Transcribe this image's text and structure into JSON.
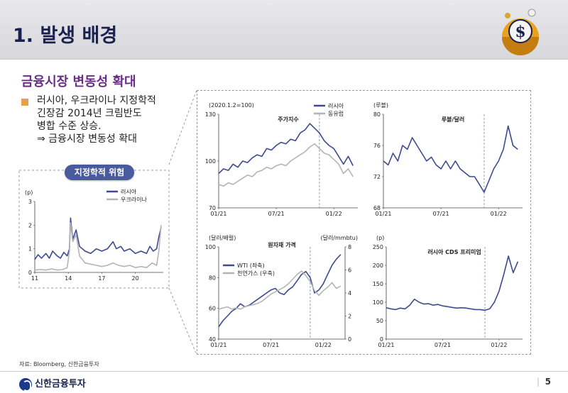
{
  "header": {
    "title": "1. 발생 배경"
  },
  "section": {
    "title": "금융시장 변동성 확대"
  },
  "bullet": {
    "lines": [
      "러시아, 우크라이나 지정학적",
      "긴장감 2014년 크림반도",
      "병합 수준 상승.",
      "⇒ 금융시장 변동성 확대"
    ]
  },
  "footer": {
    "source": "자료: Bloomberg, 신한금융투자",
    "brand": "신한금융투자",
    "page": "5"
  },
  "colors": {
    "navy": "#3d4a8f",
    "gray": "#b4b4b4",
    "purple": "#6a2c87"
  },
  "chart_data": [
    {
      "id": "geo_risk",
      "type": "line",
      "title": "지정학적 위험",
      "ylabel": "(p)",
      "ylim": [
        0,
        3
      ],
      "yticks": [
        0,
        1,
        2,
        3
      ],
      "xlim": [
        2011,
        2022.5
      ],
      "xticks": [
        2011,
        2014,
        2017,
        2020
      ],
      "xticklabels": [
        "11",
        "14",
        "17",
        "20"
      ],
      "legend": "top-right",
      "series": [
        {
          "name": "러시아",
          "color": "#3d4a8f",
          "x": [
            2011,
            2011.3,
            2011.6,
            2012,
            2012.3,
            2012.6,
            2013,
            2013.3,
            2013.6,
            2013.9,
            2014.1,
            2014.2,
            2014.4,
            2014.7,
            2015,
            2015.5,
            2016,
            2016.5,
            2017,
            2017.5,
            2018,
            2018.3,
            2018.7,
            2019,
            2019.5,
            2020,
            2020.5,
            2021,
            2021.3,
            2021.6,
            2021.9,
            2022.1,
            2022.3
          ],
          "y": [
            0.55,
            0.75,
            0.6,
            0.8,
            0.6,
            0.9,
            0.7,
            0.6,
            0.85,
            0.7,
            1.0,
            2.3,
            1.4,
            1.8,
            1.1,
            0.9,
            0.8,
            1.0,
            0.9,
            1.0,
            1.3,
            1.0,
            1.1,
            0.9,
            1.0,
            0.8,
            0.9,
            0.8,
            1.1,
            0.9,
            1.0,
            1.5,
            1.9
          ]
        },
        {
          "name": "우크라이나",
          "color": "#b4b4b4",
          "x": [
            2011,
            2011.5,
            2012,
            2012.5,
            2013,
            2013.5,
            2013.9,
            2014.1,
            2014.2,
            2014.4,
            2014.7,
            2015,
            2015.5,
            2016,
            2016.5,
            2017,
            2017.5,
            2018,
            2018.5,
            2019,
            2019.5,
            2020,
            2020.5,
            2021,
            2021.5,
            2021.9,
            2022.1,
            2022.3
          ],
          "y": [
            0.1,
            0.12,
            0.1,
            0.15,
            0.1,
            0.12,
            0.2,
            0.9,
            2.1,
            1.3,
            1.6,
            0.7,
            0.4,
            0.35,
            0.3,
            0.25,
            0.3,
            0.4,
            0.3,
            0.25,
            0.3,
            0.2,
            0.25,
            0.2,
            0.4,
            0.3,
            0.9,
            2.0
          ]
        }
      ]
    },
    {
      "id": "stock_index",
      "type": "line",
      "title": "주가지수",
      "ylabel": "(2020.1.2=100)",
      "ylim": [
        70,
        130
      ],
      "yticks": [
        70,
        100,
        130
      ],
      "xlim": [
        0,
        14.5
      ],
      "xticks": [
        0,
        6,
        12
      ],
      "xticklabels": [
        "01/21",
        "07/21",
        "01/22"
      ],
      "vline": 10.5,
      "legend": "top-right",
      "series": [
        {
          "name": "러시아",
          "color": "#3d4a8f",
          "x": [
            0,
            0.5,
            1,
            1.5,
            2,
            2.5,
            3,
            3.5,
            4,
            4.5,
            5,
            5.5,
            6,
            6.5,
            7,
            7.5,
            8,
            8.5,
            9,
            9.5,
            10,
            10.5,
            11,
            11.5,
            12,
            12.5,
            13,
            13.5,
            14
          ],
          "y": [
            92,
            95,
            94,
            98,
            96,
            100,
            99,
            102,
            104,
            103,
            108,
            107,
            110,
            112,
            111,
            114,
            113,
            118,
            120,
            124,
            121,
            118,
            113,
            110,
            108,
            103,
            98,
            103,
            97
          ]
        },
        {
          "name": "동유럽",
          "color": "#b4b4b4",
          "x": [
            0,
            0.5,
            1,
            1.5,
            2,
            2.5,
            3,
            3.5,
            4,
            4.5,
            5,
            5.5,
            6,
            6.5,
            7,
            7.5,
            8,
            8.5,
            9,
            9.5,
            10,
            10.5,
            11,
            11.5,
            12,
            12.5,
            13,
            13.5,
            14
          ],
          "y": [
            85,
            84,
            86,
            85,
            87,
            89,
            91,
            90,
            93,
            94,
            96,
            95,
            97,
            98,
            97,
            100,
            102,
            104,
            106,
            109,
            111,
            108,
            105,
            104,
            101,
            98,
            92,
            95,
            90
          ]
        }
      ]
    },
    {
      "id": "rub_usd",
      "type": "line",
      "title": "루블/달러",
      "ylabel": "(루블)",
      "ylim": [
        68,
        80
      ],
      "yticks": [
        68,
        72,
        76,
        80
      ],
      "xlim": [
        0,
        14.5
      ],
      "xticks": [
        0,
        6,
        12
      ],
      "xticklabels": [
        "01/21",
        "07/21",
        "01/22"
      ],
      "vline": 10.5,
      "series": [
        {
          "name": "",
          "color": "#3d4a8f",
          "x": [
            0,
            0.5,
            1,
            1.5,
            2,
            2.5,
            3,
            3.5,
            4,
            4.5,
            5,
            5.5,
            6,
            6.5,
            7,
            7.5,
            8,
            8.5,
            9,
            9.5,
            10,
            10.5,
            11,
            11.5,
            12,
            12.5,
            13,
            13.5,
            14
          ],
          "y": [
            74,
            73.5,
            75,
            74,
            76,
            75.5,
            77,
            76,
            75,
            74,
            74.5,
            73.5,
            73,
            74,
            73,
            74,
            73,
            72.5,
            72,
            72,
            71,
            70,
            71.5,
            73,
            74,
            75.5,
            78.5,
            76,
            75.5
          ]
        }
      ]
    },
    {
      "id": "commodity",
      "type": "line",
      "title": "원자재 가격",
      "ylabel": "(달러/배럴)",
      "ylabel_right": "(달러/mmbtu)",
      "ylim": [
        40,
        100
      ],
      "yticks": [
        40,
        60,
        80,
        100
      ],
      "ylim_right": [
        0,
        8
      ],
      "yticks_right": [
        0,
        2,
        4,
        6,
        8
      ],
      "xlim": [
        0,
        14.5
      ],
      "xticks": [
        0,
        6,
        12
      ],
      "xticklabels": [
        "01/21",
        "07/21",
        "01/22"
      ],
      "vline": 10.5,
      "legend": "middle-left",
      "series": [
        {
          "name": "WTI (좌축)",
          "color": "#3d4a8f",
          "axis": "left",
          "x": [
            0,
            0.5,
            1,
            1.5,
            2,
            2.5,
            3,
            3.5,
            4,
            4.5,
            5,
            5.5,
            6,
            6.5,
            7,
            7.5,
            8,
            8.5,
            9,
            9.5,
            10,
            10.5,
            11,
            11.5,
            12,
            12.5,
            13,
            13.5,
            14
          ],
          "y": [
            48,
            52,
            55,
            58,
            60,
            63,
            61,
            62,
            64,
            66,
            68,
            70,
            72,
            73,
            70,
            69,
            72,
            74,
            78,
            82,
            84,
            80,
            70,
            72,
            76,
            82,
            88,
            92,
            95
          ]
        },
        {
          "name": "천연가스 (우축)",
          "color": "#b4b4b4",
          "axis": "right",
          "x": [
            0,
            0.5,
            1,
            1.5,
            2,
            2.5,
            3,
            3.5,
            4,
            4.5,
            5,
            5.5,
            6,
            6.5,
            7,
            7.5,
            8,
            8.5,
            9,
            9.5,
            10,
            10.5,
            11,
            11.5,
            12,
            12.5,
            13,
            13.5,
            14
          ],
          "y": [
            2.6,
            2.7,
            2.8,
            2.6,
            2.7,
            2.6,
            2.8,
            2.9,
            3.0,
            3.1,
            3.3,
            3.6,
            3.9,
            4.1,
            4.3,
            4.5,
            4.8,
            5.2,
            5.6,
            5.9,
            5.5,
            5.0,
            4.2,
            3.8,
            4.2,
            4.5,
            4.9,
            4.4,
            4.6
          ]
        }
      ]
    },
    {
      "id": "cds",
      "type": "line",
      "title": "러시아 CDS 프리미엄",
      "ylabel": "(p)",
      "ylim": [
        0,
        250
      ],
      "yticks": [
        0,
        50,
        100,
        150,
        200,
        250
      ],
      "xlim": [
        0,
        14.5
      ],
      "xticks": [
        0,
        6,
        12
      ],
      "xticklabels": [
        "01/21",
        "07/21",
        "01/22"
      ],
      "vline": 10.5,
      "series": [
        {
          "name": "",
          "color": "#3d4a8f",
          "x": [
            0,
            0.5,
            1,
            1.5,
            2,
            2.5,
            3,
            3.5,
            4,
            4.5,
            5,
            5.5,
            6,
            6.5,
            7,
            7.5,
            8,
            8.5,
            9,
            9.5,
            10,
            10.5,
            11,
            11.5,
            12,
            12.5,
            13,
            13.5,
            14
          ],
          "y": [
            85,
            82,
            80,
            84,
            82,
            92,
            108,
            100,
            95,
            96,
            92,
            94,
            90,
            88,
            86,
            84,
            85,
            84,
            82,
            80,
            80,
            78,
            82,
            100,
            130,
            175,
            225,
            180,
            210
          ]
        }
      ]
    }
  ]
}
